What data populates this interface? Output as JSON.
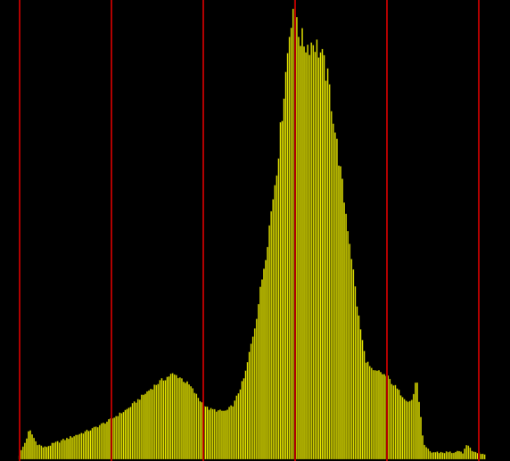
{
  "colors": {
    "background": "#000000",
    "bar_fill": "#e6e600",
    "bar_edge": "#6e6e00",
    "gridline": "#b00000"
  },
  "chart_data": {
    "type": "bar",
    "title": "",
    "xlabel": "",
    "ylabel": "",
    "grid": true,
    "gridline_orientation": "vertical",
    "gridline_count": 6,
    "xlim": [
      0,
      256
    ],
    "ylim": [
      0,
      100
    ],
    "bins": 256,
    "control_points": [
      [
        0,
        0.5
      ],
      [
        4,
        4
      ],
      [
        6,
        6.5
      ],
      [
        8,
        5
      ],
      [
        10,
        3.5
      ],
      [
        14,
        2.5
      ],
      [
        20,
        3.5
      ],
      [
        30,
        5
      ],
      [
        40,
        6.5
      ],
      [
        50,
        8.5
      ],
      [
        60,
        11
      ],
      [
        70,
        14.5
      ],
      [
        76,
        16.5
      ],
      [
        80,
        17.5
      ],
      [
        84,
        18.5
      ],
      [
        88,
        18
      ],
      [
        94,
        16
      ],
      [
        100,
        12.5
      ],
      [
        104,
        11
      ],
      [
        110,
        10.5
      ],
      [
        114,
        10.5
      ],
      [
        118,
        12
      ],
      [
        124,
        18
      ],
      [
        130,
        30
      ],
      [
        136,
        46
      ],
      [
        142,
        65
      ],
      [
        146,
        82
      ],
      [
        149,
        95
      ],
      [
        151,
        100
      ],
      [
        152,
        98
      ],
      [
        154,
        92
      ],
      [
        158,
        90
      ],
      [
        162,
        91
      ],
      [
        166,
        88
      ],
      [
        170,
        82
      ],
      [
        174,
        70
      ],
      [
        178,
        58
      ],
      [
        182,
        46
      ],
      [
        186,
        32
      ],
      [
        190,
        22
      ],
      [
        194,
        19
      ],
      [
        198,
        19
      ],
      [
        202,
        18
      ],
      [
        206,
        16
      ],
      [
        210,
        14
      ],
      [
        214,
        12.5
      ],
      [
        216,
        13
      ],
      [
        218,
        18
      ],
      [
        220,
        11
      ],
      [
        222,
        3
      ],
      [
        226,
        1.5
      ],
      [
        240,
        1.5
      ],
      [
        244,
        1.5
      ],
      [
        246,
        3.5
      ],
      [
        248,
        2
      ],
      [
        256,
        1
      ]
    ],
    "notes": []
  }
}
